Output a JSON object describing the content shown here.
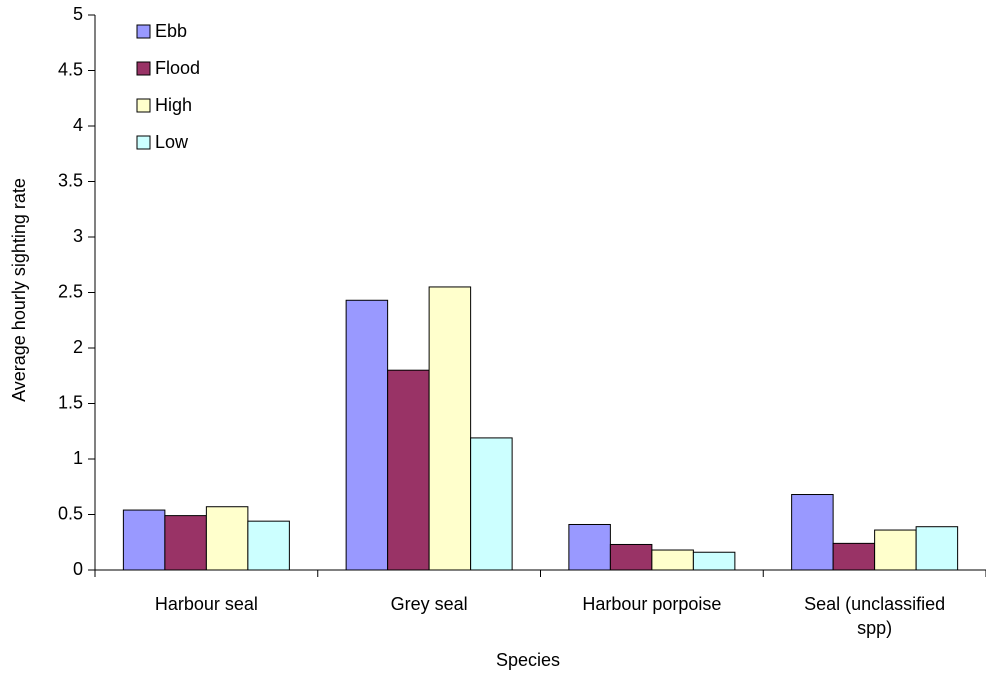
{
  "chart_data": {
    "type": "bar",
    "x_label": "Species",
    "y_label": "Average hourly sighting rate",
    "categories": [
      "Harbour seal",
      "Grey seal",
      "Harbour porpoise",
      "Seal (unclassified spp)"
    ],
    "series": [
      {
        "name": "Ebb",
        "color": "#9999ff",
        "values": [
          0.54,
          2.43,
          0.41,
          0.68
        ]
      },
      {
        "name": "Flood",
        "color": "#993366",
        "values": [
          0.49,
          1.8,
          0.23,
          0.24
        ]
      },
      {
        "name": "High",
        "color": "#ffffcc",
        "values": [
          0.57,
          2.55,
          0.18,
          0.36
        ]
      },
      {
        "name": "Low",
        "color": "#ccffff",
        "values": [
          0.44,
          1.19,
          0.16,
          0.39
        ]
      }
    ],
    "ylim": [
      0,
      5
    ],
    "yticks": [
      0,
      0.5,
      1,
      1.5,
      2,
      2.5,
      3,
      3.5,
      4,
      4.5,
      5
    ],
    "grid": false,
    "legend": "top-left"
  }
}
